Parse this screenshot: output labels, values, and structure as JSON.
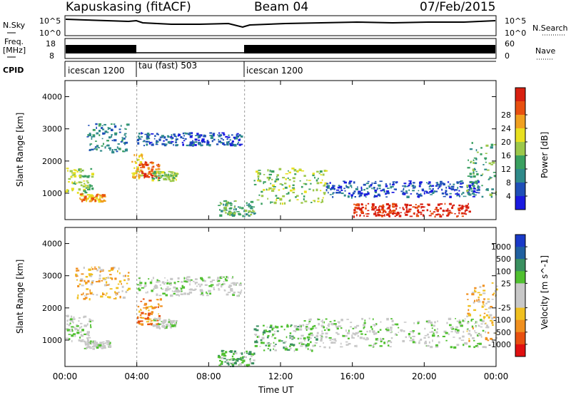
{
  "header": {
    "station": "Kapuskasing (fitACF)",
    "beam": "Beam 04",
    "date": "07/Feb/2015"
  },
  "noise_panel": {
    "left_label": "N.Sky",
    "right_label": "N.Search",
    "left_ticks": [
      "10^5",
      "10^0"
    ],
    "right_ticks": [
      "10^5",
      "10^0"
    ]
  },
  "freq_panel": {
    "left_label_1": "Freq.",
    "left_label_2": "[MHz]",
    "left_ticks": [
      "18",
      "8"
    ],
    "right_label": "Nave",
    "right_ticks": [
      "60",
      "0"
    ]
  },
  "cpid": {
    "label": "CPID",
    "segments": [
      {
        "name": "icescan 1200",
        "start": 0,
        "end": 4
      },
      {
        "name": "tau (fast) 503",
        "start": 4,
        "end": 10
      },
      {
        "name": "icescan 1200",
        "start": 10,
        "end": 24
      }
    ]
  },
  "chart_data": [
    {
      "type": "heatmap",
      "title": "",
      "xlabel": "",
      "ylabel": "Slant Range [km]",
      "xlim": [
        0,
        24
      ],
      "ylim": [
        180,
        4500
      ],
      "yticks": [
        "1000",
        "2000",
        "3000",
        "4000"
      ],
      "colorbar": {
        "label": "Power [dB]",
        "ticks": [
          "4",
          "8",
          "12",
          "16",
          "20",
          "24",
          "28"
        ],
        "colors": [
          "#1a1ae0",
          "#1f4fb8",
          "#2f8a8a",
          "#3aa060",
          "#9cc84a",
          "#e8e020",
          "#f0a020",
          "#e85010",
          "#d82010"
        ]
      },
      "regions": [
        {
          "t0": 0.0,
          "t1": 1.5,
          "r0": 1000,
          "r1": 1800,
          "level": 4
        },
        {
          "t0": 0.8,
          "t1": 2.2,
          "r0": 750,
          "r1": 1000,
          "level": 6
        },
        {
          "t0": 1.2,
          "t1": 3.5,
          "r0": 2300,
          "r1": 3200,
          "level": 2
        },
        {
          "t0": 3.7,
          "t1": 4.3,
          "r0": 1500,
          "r1": 2300,
          "level": 5
        },
        {
          "t0": 4.1,
          "t1": 5.2,
          "r0": 1500,
          "r1": 2000,
          "level": 7
        },
        {
          "t0": 4.0,
          "t1": 9.8,
          "r0": 2500,
          "r1": 2900,
          "level": 1
        },
        {
          "t0": 4.8,
          "t1": 6.2,
          "r0": 1400,
          "r1": 1700,
          "level": 4
        },
        {
          "t0": 8.5,
          "t1": 10.5,
          "r0": 300,
          "r1": 800,
          "level": 3
        },
        {
          "t0": 10.5,
          "t1": 14.5,
          "r0": 700,
          "r1": 1800,
          "level": 4
        },
        {
          "t0": 14.5,
          "t1": 23.0,
          "r0": 900,
          "r1": 1400,
          "level": 1
        },
        {
          "t0": 16.0,
          "t1": 22.5,
          "r0": 300,
          "r1": 700,
          "level": 8
        },
        {
          "t0": 22.3,
          "t1": 24.0,
          "r0": 900,
          "r1": 2600,
          "level": 3
        }
      ]
    },
    {
      "type": "heatmap",
      "title": "",
      "xlabel": "Time UT",
      "ylabel": "Slant Range [km]",
      "xlim": [
        0,
        24
      ],
      "ylim": [
        180,
        4500
      ],
      "yticks": [
        "1000",
        "2000",
        "3000",
        "4000"
      ],
      "xticks": [
        "00:00",
        "04:00",
        "08:00",
        "12:00",
        "16:00",
        "20:00",
        "00:00"
      ],
      "colorbar": {
        "label": "Velocity [m s^-1]",
        "ticks": [
          "1000",
          "500",
          "100",
          "25",
          "-25",
          "-100",
          "-500",
          "-1000"
        ],
        "colors": [
          "#1a3ac8",
          "#2060a0",
          "#3a9060",
          "#50c030",
          "#c8c8c8",
          "#c8c8c8",
          "#f0c020",
          "#f09020",
          "#e85010",
          "#e01010"
        ]
      },
      "regions": [
        {
          "t0": 0.0,
          "t1": 1.5,
          "r0": 1000,
          "r1": 1800,
          "level": 4
        },
        {
          "t0": 1.0,
          "t1": 2.5,
          "r0": 750,
          "r1": 1000,
          "level": 4
        },
        {
          "t0": 0.5,
          "t1": 3.5,
          "r0": 2300,
          "r1": 3300,
          "level": 6
        },
        {
          "t0": 4.0,
          "t1": 5.3,
          "r0": 1500,
          "r1": 2300,
          "level": 7
        },
        {
          "t0": 4.0,
          "t1": 9.8,
          "r0": 2400,
          "r1": 3000,
          "level": 4
        },
        {
          "t0": 4.8,
          "t1": 6.2,
          "r0": 1400,
          "r1": 1700,
          "level": 4
        },
        {
          "t0": 8.5,
          "t1": 10.5,
          "r0": 200,
          "r1": 700,
          "level": 3
        },
        {
          "t0": 10.5,
          "t1": 14.0,
          "r0": 700,
          "r1": 1500,
          "level": 3
        },
        {
          "t0": 13.0,
          "t1": 23.5,
          "r0": 800,
          "r1": 1700,
          "level": 4
        },
        {
          "t0": 22.3,
          "t1": 24.0,
          "r0": 1000,
          "r1": 2800,
          "level": 6
        }
      ]
    }
  ]
}
